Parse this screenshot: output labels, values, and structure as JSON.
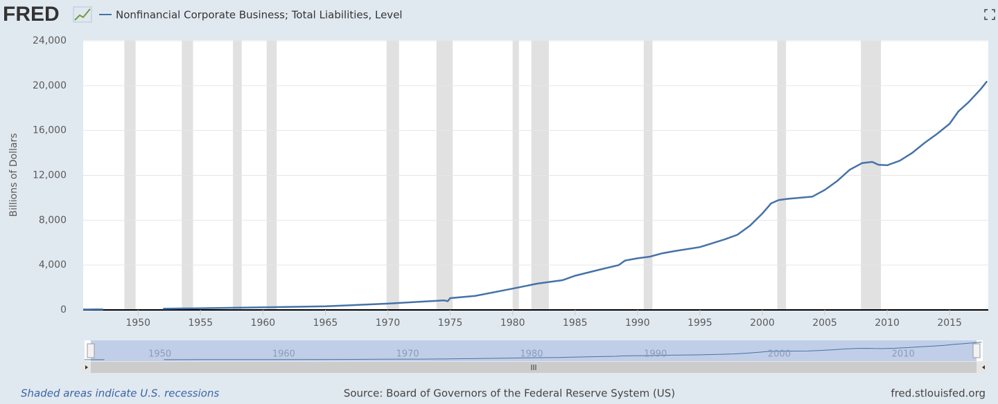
{
  "chart_data": {
    "type": "line",
    "logo": "FRED",
    "ylabel": "Billions of Dollars",
    "x": [
      1945.6,
      1946.5,
      1947.2,
      1949,
      1952,
      1955,
      1960,
      1965,
      1970,
      1973,
      1974.5,
      1974.8,
      1975,
      1977,
      1980,
      1982,
      1984,
      1985,
      1987,
      1988.5,
      1989,
      1990,
      1991,
      1992,
      1993,
      1995,
      1997,
      1998,
      1999,
      2000,
      2000.7,
      2001.3,
      2002,
      2003,
      2004,
      2005,
      2006,
      2007,
      2008,
      2008.8,
      2009.3,
      2010,
      2011,
      2012,
      2013,
      2014,
      2015,
      2015.7,
      2016.5,
      2017.5,
      2018
    ],
    "series": [
      {
        "name": "Nonfinancial Corporate Business; Total Liabilities, Level",
        "color": "#4572a7",
        "values": [
          40,
          45,
          50,
          null,
          110,
          150,
          230,
          320,
          560,
          750,
          850,
          780,
          1050,
          1250,
          1900,
          2350,
          2650,
          3050,
          3600,
          4000,
          4400,
          4600,
          4750,
          5050,
          5250,
          5600,
          6300,
          6700,
          7500,
          8600,
          9500,
          9800,
          9900,
          10000,
          10100,
          10700,
          11500,
          12500,
          13100,
          13200,
          12950,
          12900,
          13300,
          14000,
          14900,
          15700,
          16600,
          17700,
          18500,
          19700,
          20400
        ]
      }
    ],
    "recessions": [
      [
        1948.9,
        1949.8
      ],
      [
        1953.5,
        1954.4
      ],
      [
        1957.6,
        1958.3
      ],
      [
        1960.3,
        1961.1
      ],
      [
        1969.9,
        1970.9
      ],
      [
        1973.9,
        1975.2
      ],
      [
        1980.0,
        1980.5
      ],
      [
        1981.5,
        1982.9
      ],
      [
        1990.5,
        1991.2
      ],
      [
        2001.2,
        2001.9
      ],
      [
        2007.9,
        2009.5
      ]
    ],
    "xlim": [
      1945.6,
      2018.1
    ],
    "xticks": [
      1950,
      1955,
      1960,
      1965,
      1970,
      1975,
      1980,
      1985,
      1990,
      1995,
      2000,
      2005,
      2010,
      2015
    ],
    "ylim": [
      0,
      24000
    ],
    "yticks": [
      0,
      {
        "value": 4000,
        "label": "4,000"
      },
      {
        "value": 8000,
        "label": "8,000"
      },
      {
        "value": 12000,
        "label": "12,000"
      },
      {
        "value": 16000,
        "label": "16,000"
      },
      {
        "value": 20000,
        "label": "20,000"
      },
      {
        "value": 24000,
        "label": "24,000"
      }
    ],
    "navigator_xticks": [
      1950,
      1960,
      1970,
      1980,
      1990,
      2000,
      2010
    ],
    "grid": true,
    "recession_note": "Shaded areas indicate U.S. recessions",
    "source": "Source: Board of Governors of the Federal Reserve System (US)",
    "site": "fred.stlouisfed.org"
  }
}
